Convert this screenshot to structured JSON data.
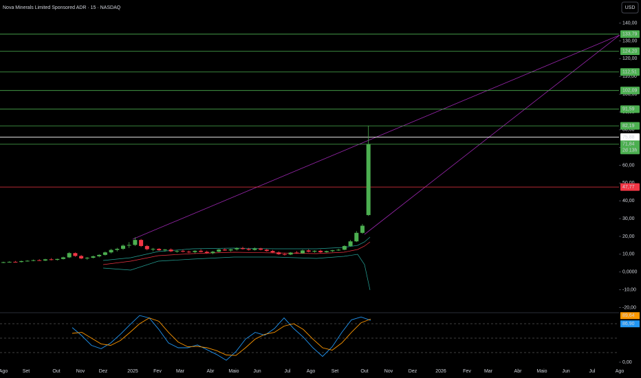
{
  "chart_data": {
    "type": "candlestick",
    "title": "Nova Minerals Limited Sponsored ADR · 15 · NASDAQ",
    "currency": "USD",
    "up_color": "#4caf50",
    "down_color": "#f23645",
    "ylim": [
      -21,
      153
    ],
    "yticks": [
      {
        "value": 140,
        "label": "140,00"
      },
      {
        "value": 130,
        "label": "130,00"
      },
      {
        "value": 120,
        "label": "120,00"
      },
      {
        "value": 110,
        "label": "110,00"
      },
      {
        "value": 100,
        "label": "100,00"
      },
      {
        "value": 90,
        "label": "90,00"
      },
      {
        "value": 80,
        "label": "80,00"
      },
      {
        "value": 70,
        "label": "70,00"
      },
      {
        "value": 60,
        "label": "60,00"
      },
      {
        "value": 50,
        "label": "50,00"
      },
      {
        "value": 40,
        "label": "40,00"
      },
      {
        "value": 30,
        "label": "30,00"
      },
      {
        "value": 20,
        "label": "20,00"
      },
      {
        "value": 10,
        "label": "10,00"
      },
      {
        "value": 0,
        "label": "0,0000"
      },
      {
        "value": -10,
        "label": "-10,00"
      },
      {
        "value": -20,
        "label": "-20,00"
      }
    ],
    "x_labels": [
      "Ago",
      "Set",
      "Out",
      "Nov",
      "Dez",
      "2025",
      "Fev",
      "Mar",
      "Abr",
      "Maio",
      "Jun",
      "Jul",
      "Ago",
      "Set",
      "Out",
      "Nov",
      "Dez",
      "2026",
      "Fev",
      "Mar",
      "Abr",
      "Maio",
      "Jun",
      "Jul",
      "Ago"
    ],
    "price_levels": [
      {
        "value": 133.79,
        "label": "133,79",
        "color": "#4caf50"
      },
      {
        "value": 124.2,
        "label": "124,20",
        "color": "#4caf50"
      },
      {
        "value": 112.51,
        "label": "112,51",
        "color": "#4caf50"
      },
      {
        "value": 102.09,
        "label": "102,09",
        "color": "#4caf50"
      },
      {
        "value": 91.59,
        "label": "91,59",
        "color": "#4caf50"
      },
      {
        "value": 82.19,
        "label": "82,19",
        "color": "#4caf50"
      },
      {
        "value": 75.88,
        "label": "75,88",
        "color": "#ffffff"
      },
      {
        "value": 71.84,
        "label": "71,84",
        "sublabel": "2d 13h",
        "color": "#4caf50"
      },
      {
        "value": 47.77,
        "label": "47,77",
        "color": "#f23645"
      }
    ],
    "candles": [
      [
        5.2,
        5.8,
        4.9,
        5.5
      ],
      [
        5.5,
        6.0,
        5.2,
        5.7
      ],
      [
        5.7,
        6.2,
        5.4,
        5.6
      ],
      [
        5.6,
        6.4,
        5.3,
        6.1
      ],
      [
        6.1,
        6.6,
        5.8,
        6.3
      ],
      [
        6.3,
        7.0,
        6.0,
        6.6
      ],
      [
        6.6,
        7.2,
        6.2,
        6.4
      ],
      [
        6.4,
        7.4,
        6.1,
        7.1
      ],
      [
        7.1,
        7.8,
        6.5,
        6.8
      ],
      [
        6.8,
        7.5,
        6.4,
        7.3
      ],
      [
        7.3,
        8.6,
        7.0,
        8.2
      ],
      [
        8.2,
        11.2,
        7.8,
        10.6
      ],
      [
        10.6,
        11.0,
        8.5,
        9.0
      ],
      [
        9.0,
        9.6,
        7.2,
        7.6
      ],
      [
        7.6,
        8.4,
        6.8,
        8.0
      ],
      [
        8.0,
        9.2,
        7.6,
        8.8
      ],
      [
        8.8,
        10.0,
        8.2,
        9.6
      ],
      [
        9.6,
        11.5,
        9.2,
        11.0
      ],
      [
        11.0,
        13.0,
        10.4,
        12.4
      ],
      [
        12.4,
        13.6,
        11.5,
        13.0
      ],
      [
        13.0,
        15.5,
        12.4,
        14.8
      ],
      [
        14.8,
        16.8,
        13.5,
        15.2
      ],
      [
        15.2,
        19.5,
        14.6,
        18.0
      ],
      [
        18.0,
        18.6,
        14.0,
        14.6
      ],
      [
        14.6,
        15.2,
        12.2,
        12.8
      ],
      [
        12.8,
        13.5,
        11.6,
        13.0
      ],
      [
        13.0,
        13.4,
        11.8,
        12.2
      ],
      [
        12.2,
        13.0,
        11.4,
        12.6
      ],
      [
        12.6,
        13.2,
        11.2,
        11.6
      ],
      [
        11.6,
        12.4,
        10.8,
        11.8
      ],
      [
        11.8,
        12.6,
        11.0,
        11.4
      ],
      [
        11.4,
        12.0,
        10.6,
        11.2
      ],
      [
        11.2,
        12.2,
        10.4,
        11.9
      ],
      [
        11.9,
        12.8,
        11.0,
        11.3
      ],
      [
        11.3,
        12.0,
        10.2,
        10.6
      ],
      [
        10.6,
        11.8,
        10.0,
        11.4
      ],
      [
        11.4,
        13.0,
        11.0,
        12.6
      ],
      [
        12.6,
        13.4,
        11.8,
        12.1
      ],
      [
        12.1,
        13.0,
        11.4,
        12.7
      ],
      [
        12.7,
        13.8,
        12.0,
        13.4
      ],
      [
        13.4,
        14.2,
        12.6,
        12.9
      ],
      [
        12.9,
        13.6,
        12.0,
        12.4
      ],
      [
        12.4,
        13.8,
        12.0,
        13.2
      ],
      [
        13.2,
        13.6,
        12.1,
        12.5
      ],
      [
        12.5,
        13.0,
        11.4,
        11.8
      ],
      [
        11.8,
        12.4,
        10.6,
        11.0
      ],
      [
        11.0,
        11.6,
        9.6,
        10.0
      ],
      [
        10.0,
        10.8,
        9.2,
        9.8
      ],
      [
        9.8,
        11.2,
        9.5,
        10.9
      ],
      [
        10.9,
        11.8,
        10.2,
        10.5
      ],
      [
        10.5,
        12.6,
        10.2,
        12.1
      ],
      [
        12.1,
        12.8,
        11.0,
        11.4
      ],
      [
        11.4,
        12.2,
        10.8,
        11.9
      ],
      [
        11.9,
        12.6,
        10.6,
        11.1
      ],
      [
        11.1,
        12.0,
        10.8,
        11.7
      ],
      [
        11.7,
        12.4,
        11.2,
        12.2
      ],
      [
        12.2,
        13.0,
        11.8,
        12.5
      ],
      [
        12.5,
        15.0,
        12.2,
        14.6
      ],
      [
        14.6,
        18.0,
        14.2,
        17.2
      ],
      [
        17.2,
        23.0,
        16.8,
        22.0
      ],
      [
        22.0,
        27.0,
        21.5,
        26.0
      ],
      [
        32.0,
        82.19,
        31.5,
        71.84
      ]
    ],
    "indicator": {
      "type": "line",
      "ylim": [
        0,
        100
      ],
      "yticks": [
        {
          "value": 0,
          "label": "0,00"
        }
      ],
      "levels": [
        80,
        50,
        20
      ],
      "series": [
        {
          "color": "#2196f3",
          "values": [
            72,
            55,
            35,
            28,
            40,
            58,
            78,
            97,
            92,
            68,
            40,
            30,
            30,
            36,
            26,
            16,
            4,
            22,
            48,
            62,
            56,
            70,
            92,
            70,
            52,
            30,
            12,
            32,
            62,
            88,
            94,
            86.9
          ],
          "value_label": "86,90"
        },
        {
          "color": "#ff9800",
          "values": [
            60,
            62,
            50,
            38,
            35,
            45,
            62,
            80,
            92,
            85,
            62,
            42,
            32,
            33,
            30,
            24,
            15,
            14,
            30,
            48,
            58,
            62,
            75,
            80,
            68,
            48,
            30,
            25,
            40,
            62,
            82,
            89.64
          ],
          "value_label": "89,64"
        }
      ]
    }
  }
}
